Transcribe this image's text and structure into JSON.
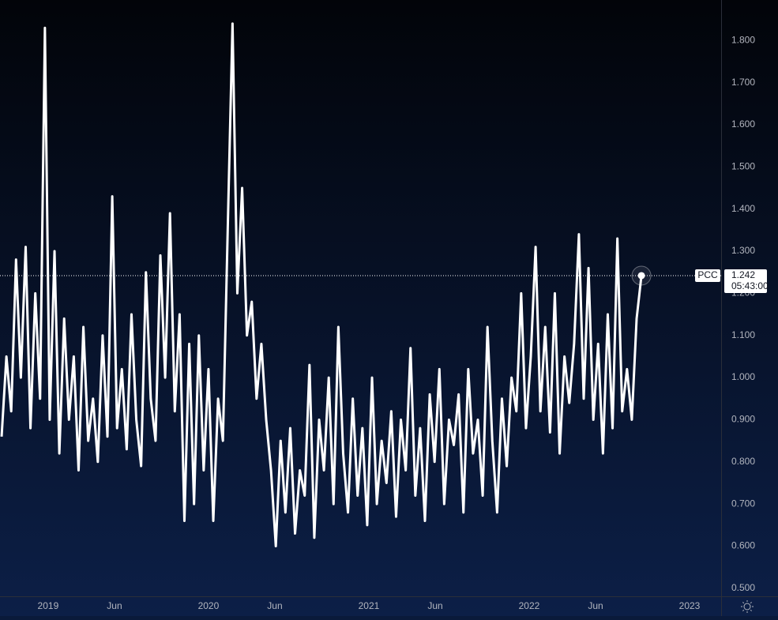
{
  "chart_data": {
    "type": "line",
    "x": [
      2018.71,
      2018.74,
      2018.77,
      2018.8,
      2018.83,
      2018.86,
      2018.89,
      2018.92,
      2018.95,
      2018.98,
      2019.01,
      2019.04,
      2019.07,
      2019.1,
      2019.13,
      2019.16,
      2019.19,
      2019.22,
      2019.25,
      2019.28,
      2019.31,
      2019.34,
      2019.37,
      2019.4,
      2019.43,
      2019.46,
      2019.49,
      2019.52,
      2019.55,
      2019.58,
      2019.61,
      2019.64,
      2019.67,
      2019.7,
      2019.73,
      2019.76,
      2019.79,
      2019.82,
      2019.85,
      2019.88,
      2019.91,
      2019.94,
      2019.97,
      2020,
      2020.03,
      2020.06,
      2020.09,
      2020.12,
      2020.15,
      2020.18,
      2020.21,
      2020.24,
      2020.27,
      2020.3,
      2020.33,
      2020.36,
      2020.39,
      2020.42,
      2020.45,
      2020.48,
      2020.51,
      2020.54,
      2020.57,
      2020.6,
      2020.63,
      2020.66,
      2020.69,
      2020.72,
      2020.75,
      2020.78,
      2020.81,
      2020.84,
      2020.87,
      2020.9,
      2020.93,
      2020.96,
      2020.99,
      2021.02,
      2021.05,
      2021.08,
      2021.11,
      2021.14,
      2021.17,
      2021.2,
      2021.23,
      2021.26,
      2021.29,
      2021.32,
      2021.35,
      2021.38,
      2021.41,
      2021.44,
      2021.47,
      2021.5,
      2021.53,
      2021.56,
      2021.59,
      2021.62,
      2021.65,
      2021.68,
      2021.71,
      2021.74,
      2021.77,
      2021.8,
      2021.83,
      2021.86,
      2021.89,
      2021.92,
      2021.95,
      2021.98,
      2022.01,
      2022.04,
      2022.07,
      2022.1,
      2022.13,
      2022.16,
      2022.19,
      2022.22,
      2022.25,
      2022.28,
      2022.31,
      2022.34,
      2022.37,
      2022.4,
      2022.43,
      2022.46,
      2022.49,
      2022.52,
      2022.55,
      2022.58,
      2022.61,
      2022.64,
      2022.67,
      2022.7
    ],
    "series": [
      {
        "name": "PCC",
        "color": "#ffffff",
        "values": [
          0.86,
          1.05,
          0.92,
          1.28,
          1.0,
          1.31,
          0.88,
          1.2,
          0.95,
          1.83,
          0.9,
          1.3,
          0.82,
          1.14,
          0.9,
          1.05,
          0.78,
          1.12,
          0.85,
          0.95,
          0.8,
          1.1,
          0.86,
          1.43,
          0.88,
          1.02,
          0.83,
          1.15,
          0.9,
          0.79,
          1.25,
          0.95,
          0.85,
          1.29,
          1.0,
          1.39,
          0.92,
          1.15,
          0.66,
          1.08,
          0.7,
          1.1,
          0.78,
          1.02,
          0.66,
          0.95,
          0.85,
          1.35,
          1.84,
          1.2,
          1.45,
          1.1,
          1.18,
          0.95,
          1.08,
          0.9,
          0.78,
          0.6,
          0.85,
          0.68,
          0.88,
          0.63,
          0.78,
          0.72,
          1.03,
          0.62,
          0.9,
          0.78,
          1.0,
          0.7,
          1.12,
          0.82,
          0.68,
          0.95,
          0.72,
          0.88,
          0.65,
          1.0,
          0.7,
          0.85,
          0.75,
          0.92,
          0.67,
          0.9,
          0.78,
          1.07,
          0.72,
          0.88,
          0.66,
          0.96,
          0.8,
          1.02,
          0.7,
          0.9,
          0.84,
          0.96,
          0.68,
          1.02,
          0.82,
          0.9,
          0.72,
          1.12,
          0.85,
          0.68,
          0.95,
          0.79,
          1.0,
          0.92,
          1.2,
          0.88,
          1.05,
          1.31,
          0.92,
          1.12,
          0.87,
          1.2,
          0.82,
          1.05,
          0.94,
          1.08,
          1.34,
          0.95,
          1.26,
          0.9,
          1.08,
          0.82,
          1.15,
          0.88,
          1.33,
          0.92,
          1.02,
          0.9,
          1.14,
          1.242
        ]
      }
    ],
    "countdown": "05:43:00",
    "xlim": [
      2018.7,
      2023.197
    ],
    "xticks": [
      {
        "value": 2019,
        "label": "2019"
      },
      {
        "value": 2019.414,
        "label": "Jun"
      },
      {
        "value": 2020,
        "label": "2020"
      },
      {
        "value": 2020.414,
        "label": "Jun"
      },
      {
        "value": 2021,
        "label": "2021"
      },
      {
        "value": 2021.414,
        "label": "Jun"
      },
      {
        "value": 2022,
        "label": "2022"
      },
      {
        "value": 2022.414,
        "label": "Jun"
      },
      {
        "value": 2023,
        "label": "2023"
      }
    ],
    "ylim": [
      0.481,
      1.896
    ],
    "yticks": [
      {
        "value": 0.5,
        "label": "0.500"
      },
      {
        "value": 0.6,
        "label": "0.600"
      },
      {
        "value": 0.7,
        "label": "0.700"
      },
      {
        "value": 0.8,
        "label": "0.800"
      },
      {
        "value": 0.9,
        "label": "0.900"
      },
      {
        "value": 1.0,
        "label": "1.000"
      },
      {
        "value": 1.1,
        "label": "1.100"
      },
      {
        "value": 1.2,
        "label": "1.200"
      },
      {
        "value": 1.3,
        "label": "1.300"
      },
      {
        "value": 1.4,
        "label": "1.400"
      },
      {
        "value": 1.5,
        "label": "1.500"
      },
      {
        "value": 1.6,
        "label": "1.600"
      },
      {
        "value": 1.7,
        "label": "1.700"
      },
      {
        "value": 1.8,
        "label": "1.800"
      }
    ],
    "grid": false
  }
}
